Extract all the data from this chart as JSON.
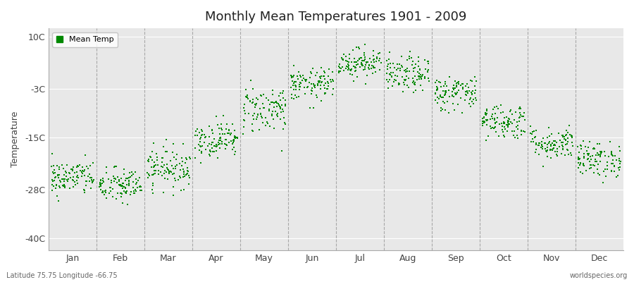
{
  "title": "Monthly Mean Temperatures 1901 - 2009",
  "ylabel": "Temperature",
  "yticks": [
    10,
    -3,
    -15,
    -28,
    -40
  ],
  "yticklabels": [
    "10C",
    "-3C",
    "-15C",
    "-28C",
    "-40C"
  ],
  "ylim": [
    -43,
    12
  ],
  "xlim": [
    0,
    12
  ],
  "months": [
    "Jan",
    "Feb",
    "Mar",
    "Apr",
    "May",
    "Jun",
    "Jul",
    "Aug",
    "Sep",
    "Oct",
    "Nov",
    "Dec"
  ],
  "month_means": [
    -25.0,
    -27.0,
    -22.5,
    -15.5,
    -8.0,
    -2.0,
    3.5,
    0.5,
    -4.0,
    -11.0,
    -16.5,
    -20.5
  ],
  "month_stds": [
    2.2,
    2.2,
    2.5,
    2.2,
    3.0,
    2.0,
    1.8,
    2.2,
    2.2,
    2.2,
    2.0,
    2.2
  ],
  "n_years": 109,
  "dot_color": "#008800",
  "dot_size": 2,
  "bg_color": "#e8e8e8",
  "legend_label": "Mean Temp",
  "footer_left": "Latitude 75.75 Longitude -66.75",
  "footer_right": "worldspecies.org",
  "dashed_line_color": "#999999"
}
